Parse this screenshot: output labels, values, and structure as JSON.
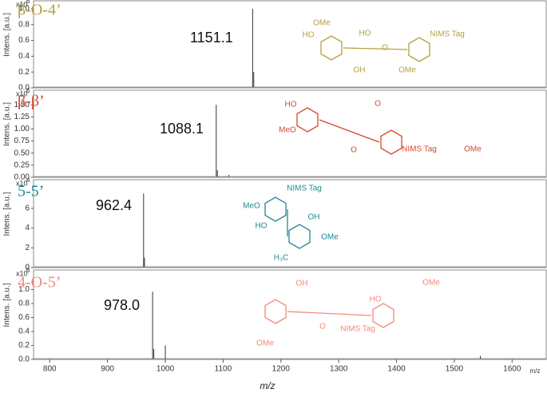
{
  "chart_data": [
    {
      "type": "spectrum",
      "title": "β-O-4’",
      "color": "#b5a03c",
      "y_label": "Intens. [a.u.]",
      "y_multiplier": {
        "base": "x10",
        "exponent": "6"
      },
      "x": [
        1151.1,
        1153
      ],
      "values": [
        1.0,
        0.2
      ],
      "peak_label": "1151.1",
      "xlim": [
        772,
        1659
      ],
      "ylim": [
        0,
        1.1
      ],
      "yticks": [
        {
          "value": 0,
          "label": "0.0"
        },
        0.2,
        0.4,
        0.6,
        0.8,
        {
          "value": 1,
          "label": "1.0"
        }
      ],
      "structure_labels": [
        "OMe",
        "HO",
        "HO",
        "O",
        "NIMS Tag",
        "OH",
        "OMe"
      ]
    },
    {
      "type": "spectrum",
      "title": "β-β’",
      "color": "#d4482c",
      "y_label": "Intens. [a.u.]",
      "y_multiplier": {
        "base": "x10",
        "exponent": "6"
      },
      "x": [
        1088.1,
        1090,
        1110
      ],
      "values": [
        1.5,
        0.15,
        0.05
      ],
      "peak_label": "1088.1",
      "xlim": [
        772,
        1659
      ],
      "ylim": [
        0,
        1.8
      ],
      "yticks": [
        {
          "value": 0,
          "label": "0.00"
        },
        0.25,
        {
          "value": 0.5,
          "label": "0.50"
        },
        0.75,
        {
          "value": 1,
          "label": "1.00"
        },
        1.25,
        {
          "value": 1.5,
          "label": "1.50"
        }
      ],
      "structure_labels": [
        "HO",
        "MeO",
        "O",
        "O",
        "NIMS Tag",
        "OMe"
      ]
    },
    {
      "type": "spectrum",
      "title": "5-5’",
      "color": "#1f8894",
      "y_label": "Intens. [a.u.]",
      "y_multiplier": {
        "base": "x10",
        "exponent": "4"
      },
      "x": [
        962.4,
        964
      ],
      "values": [
        7.5,
        1.0
      ],
      "peak_label": "962.4",
      "xlim": [
        772,
        1659
      ],
      "ylim": [
        0,
        8.9
      ],
      "yticks": [
        0,
        2,
        4,
        6
      ],
      "structure_labels": [
        "NIMS Tag",
        "MeO",
        "HO",
        "OH",
        "OMe",
        "H₃C"
      ]
    },
    {
      "type": "spectrum",
      "title": "4-O-5’",
      "color": "#f08a78",
      "y_label": "Intens. [a.u.]",
      "y_multiplier": {
        "base": "x10",
        "exponent": "6"
      },
      "x": [
        978.0,
        980,
        1000,
        1545
      ],
      "values": [
        0.97,
        0.15,
        0.2,
        0.05
      ],
      "peak_label": "978.0",
      "xlim": [
        772,
        1659
      ],
      "ylim": [
        0,
        1.28
      ],
      "yticks": [
        {
          "value": 0,
          "label": "0.0"
        },
        0.2,
        0.4,
        0.6,
        0.8,
        {
          "value": 1,
          "label": "1.0"
        }
      ],
      "xticks": [
        800,
        900,
        1000,
        1100,
        1200,
        1300,
        1400,
        1500,
        1600
      ],
      "x_label": "m/z",
      "x_unit": "m/z",
      "structure_labels": [
        "OH",
        "HO",
        "OMe",
        "O",
        "NIMS Tag",
        "OMe"
      ]
    }
  ]
}
